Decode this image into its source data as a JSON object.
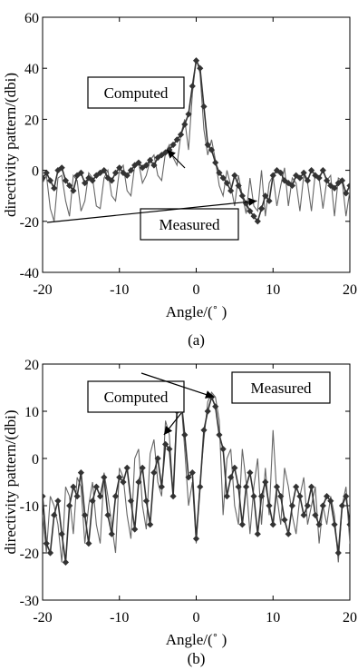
{
  "chart_data": [
    {
      "type": "line",
      "panel_label": "(a)",
      "xlabel": "Angle/(˚ )",
      "ylabel": "directivity pattern/(dbi)",
      "xlim": [
        -20,
        20
      ],
      "ylim": [
        -40,
        60
      ],
      "xticks": [
        -20,
        -10,
        0,
        10,
        20
      ],
      "yticks": [
        -40,
        -20,
        0,
        20,
        40,
        60
      ],
      "grid": false,
      "annotations": [
        {
          "text": "Computed",
          "target": [
            -3.8,
            8
          ]
        },
        {
          "text": "Measured",
          "target": [
            7.9,
            -12
          ]
        }
      ],
      "series": [
        {
          "marker": "diamond",
          "x": [
            -20,
            -19.5,
            -19,
            -18.5,
            -18,
            -17.5,
            -17,
            -16.5,
            -16,
            -15.5,
            -15,
            -14.5,
            -14,
            -13.5,
            -13,
            -12.5,
            -12,
            -11.5,
            -11,
            -10.5,
            -10,
            -9.5,
            -9,
            -8.5,
            -8,
            -7.5,
            -7,
            -6.5,
            -6,
            -5.5,
            -5,
            -4.5,
            -4,
            -3.5,
            -3,
            -2.5,
            -2,
            -1.5,
            -1,
            -0.5,
            0,
            0.5,
            1,
            1.5,
            2,
            2.5,
            3,
            3.5,
            4,
            4.5,
            5,
            5.5,
            6,
            6.5,
            7,
            7.5,
            8,
            8.5,
            9,
            9.5,
            10,
            10.5,
            11,
            11.5,
            12,
            12.5,
            13,
            13.5,
            14,
            14.5,
            15,
            15.5,
            16,
            16.5,
            17,
            17.5,
            18,
            18.5,
            19,
            19.5,
            20
          ],
          "values": [
            -3,
            -1,
            -4,
            -7,
            0,
            1,
            -4,
            -6,
            -8,
            -2,
            -1,
            -5,
            -3,
            -4,
            -2,
            -1,
            0,
            -3,
            -4,
            -1,
            1,
            -1,
            -2,
            0,
            2,
            3,
            1,
            2,
            4,
            2,
            5,
            6,
            7,
            8,
            10,
            12,
            14,
            18,
            22,
            33,
            43,
            40,
            25,
            10,
            8,
            3,
            -1,
            -3,
            -5,
            -8,
            -2,
            -6,
            -10,
            -13,
            -16,
            -18,
            -20,
            -15,
            -10,
            -12,
            -2,
            0,
            -1,
            -4,
            -5,
            -6,
            -2,
            -3,
            -1,
            -4,
            0,
            -2,
            -3,
            0,
            -4,
            -6,
            -7,
            -5,
            -4,
            -9,
            -6
          ]
        },
        {
          "marker": "none",
          "x": [
            -20,
            -19.5,
            -19,
            -18.5,
            -18,
            -17.5,
            -17,
            -16.5,
            -16,
            -15.5,
            -15,
            -14.5,
            -14,
            -13.5,
            -13,
            -12.5,
            -12,
            -11.5,
            -11,
            -10.5,
            -10,
            -9.5,
            -9,
            -8.5,
            -8,
            -7.5,
            -7,
            -6.5,
            -6,
            -5.5,
            -5,
            -4.5,
            -4,
            -3.5,
            -3,
            -2.5,
            -2,
            -1.5,
            -1,
            -0.5,
            0,
            0.5,
            1,
            1.5,
            2,
            2.5,
            3,
            3.5,
            4,
            4.5,
            5,
            5.5,
            6,
            6.5,
            7,
            7.5,
            8,
            8.5,
            9,
            9.5,
            10,
            10.5,
            11,
            11.5,
            12,
            12.5,
            13,
            13.5,
            14,
            14.5,
            15,
            15.5,
            16,
            16.5,
            17,
            17.5,
            18,
            18.5,
            19,
            19.5,
            20
          ],
          "values": [
            -5,
            -2,
            -15,
            -20,
            -3,
            -2,
            -12,
            -18,
            -2,
            -4,
            -16,
            -12,
            -1,
            -3,
            -14,
            -15,
            -3,
            0,
            -10,
            -12,
            0,
            2,
            -8,
            -10,
            2,
            3,
            -5,
            -2,
            4,
            6,
            -2,
            -4,
            7,
            10,
            5,
            2,
            14,
            20,
            8,
            30,
            44,
            38,
            16,
            6,
            12,
            4,
            -6,
            -10,
            0,
            -6,
            -14,
            -2,
            -10,
            -17,
            -3,
            -14,
            -16,
            0,
            -18,
            -5,
            -2,
            -14,
            -6,
            1,
            -14,
            -3,
            -5,
            -16,
            -2,
            -5,
            -16,
            -1,
            -3,
            -15,
            -4,
            -2,
            -18,
            -3,
            -4,
            -18,
            -8
          ]
        }
      ]
    },
    {
      "type": "line",
      "panel_label": "(b)",
      "xlabel": "Angle/(˚ )",
      "ylabel": "directivity pattern/(dbi)",
      "xlim": [
        -20,
        20
      ],
      "ylim": [
        -30,
        20
      ],
      "xticks": [
        -20,
        -10,
        0,
        10,
        20
      ],
      "yticks": [
        -30,
        -20,
        -10,
        0,
        10,
        20
      ],
      "grid": false,
      "annotations": [
        {
          "text": "Computed",
          "target": [
            -4.2,
            5
          ]
        },
        {
          "text": "Measured",
          "target": [
            2.3,
            13
          ]
        }
      ],
      "series": [
        {
          "marker": "diamond",
          "x": [
            -20,
            -19.5,
            -19,
            -18.5,
            -18,
            -17.5,
            -17,
            -16.5,
            -16,
            -15.5,
            -15,
            -14.5,
            -14,
            -13.5,
            -13,
            -12.5,
            -12,
            -11.5,
            -11,
            -10.5,
            -10,
            -9.5,
            -9,
            -8.5,
            -8,
            -7.5,
            -7,
            -6.5,
            -6,
            -5.5,
            -5,
            -4.5,
            -4,
            -3.5,
            -3,
            -2.5,
            -2,
            -1.5,
            -1,
            -0.5,
            0,
            0.5,
            1,
            1.5,
            2,
            2.5,
            3,
            3.5,
            4,
            4.5,
            5,
            5.5,
            6,
            6.5,
            7,
            7.5,
            8,
            8.5,
            9,
            9.5,
            10,
            10.5,
            11,
            11.5,
            12,
            12.5,
            13,
            13.5,
            14,
            14.5,
            15,
            15.5,
            16,
            16.5,
            17,
            17.5,
            18,
            18.5,
            19,
            19.5,
            20
          ],
          "values": [
            -8,
            -18,
            -20,
            -12,
            -9,
            -16,
            -22,
            -10,
            -6,
            -8,
            -3,
            -12,
            -18,
            -9,
            -6,
            -8,
            -4,
            -12,
            -16,
            -8,
            -4,
            -5,
            -2,
            -9,
            -15,
            -5,
            -2,
            -9,
            -14,
            -3,
            0,
            -6,
            3,
            2,
            -8,
            10,
            13,
            5,
            -4,
            -3,
            -17,
            -6,
            6,
            10,
            13,
            11,
            5,
            2,
            -8,
            -4,
            -2,
            -6,
            -14,
            -6,
            -3,
            -8,
            -16,
            -8,
            -5,
            -10,
            -14,
            -6,
            -8,
            -13,
            -16,
            -10,
            -6,
            -8,
            -12,
            -10,
            -6,
            -12,
            -14,
            -10,
            -8,
            -9,
            -14,
            -20,
            -10,
            -8,
            -14
          ]
        },
        {
          "marker": "none",
          "x": [
            -20,
            -19.5,
            -19,
            -18.5,
            -18,
            -17.5,
            -17,
            -16.5,
            -16,
            -15.5,
            -15,
            -14.5,
            -14,
            -13.5,
            -13,
            -12.5,
            -12,
            -11.5,
            -11,
            -10.5,
            -10,
            -9.5,
            -9,
            -8.5,
            -8,
            -7.5,
            -7,
            -6.5,
            -6,
            -5.5,
            -5,
            -4.5,
            -4,
            -3.5,
            -3,
            -2.5,
            -2,
            -1.5,
            -1,
            -0.5,
            0,
            0.5,
            1,
            1.5,
            2,
            2.5,
            3,
            3.5,
            4,
            4.5,
            5,
            5.5,
            6,
            6.5,
            7,
            7.5,
            8,
            8.5,
            9,
            9.5,
            10,
            10.5,
            11,
            11.5,
            12,
            12.5,
            13,
            13.5,
            14,
            14.5,
            15,
            15.5,
            16,
            16.5,
            17,
            17.5,
            18,
            18.5,
            19,
            19.5,
            20
          ],
          "values": [
            -12,
            -20,
            -8,
            -10,
            -14,
            -22,
            -6,
            -8,
            -16,
            -4,
            -6,
            -18,
            -10,
            -5,
            -14,
            -18,
            -3,
            -8,
            -14,
            -20,
            -2,
            -4,
            -12,
            -17,
            0,
            2,
            -10,
            -15,
            1,
            4,
            -5,
            -8,
            8,
            5,
            -8,
            12,
            13,
            2,
            -10,
            -5,
            -18,
            -5,
            4,
            12,
            14,
            13,
            8,
            -12,
            0,
            2,
            -10,
            -14,
            2,
            -5,
            -16,
            -6,
            0,
            -14,
            -2,
            -12,
            6,
            -8,
            -14,
            -2,
            -6,
            -12,
            -16,
            -8,
            -4,
            -14,
            -10,
            -6,
            -18,
            -10,
            -14,
            -8,
            -12,
            -22,
            -10,
            -6,
            -18
          ]
        }
      ]
    }
  ]
}
